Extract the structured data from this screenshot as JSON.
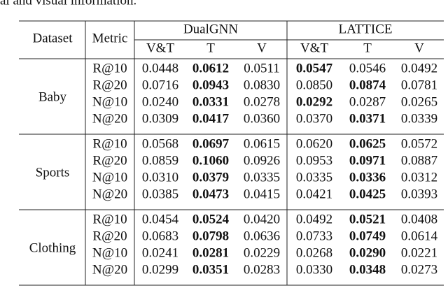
{
  "caption_fragment": "al and visual information.",
  "table": {
    "header": {
      "dataset": "Dataset",
      "metric": "Metric",
      "groups": [
        "DualGNN",
        "LATTICE"
      ],
      "subcolumns": [
        "V&T",
        "T",
        "V",
        "V&T",
        "T",
        "V"
      ]
    },
    "sections": [
      {
        "dataset": "Baby",
        "rows": [
          {
            "metric": "R@10",
            "values": [
              "0.0448",
              "0.0612",
              "0.0511",
              "0.0547",
              "0.0546",
              "0.0492"
            ],
            "bold": [
              false,
              true,
              false,
              true,
              false,
              false
            ]
          },
          {
            "metric": "R@20",
            "values": [
              "0.0716",
              "0.0943",
              "0.0830",
              "0.0850",
              "0.0874",
              "0.0781"
            ],
            "bold": [
              false,
              true,
              false,
              false,
              true,
              false
            ]
          },
          {
            "metric": "N@10",
            "values": [
              "0.0240",
              "0.0331",
              "0.0278",
              "0.0292",
              "0.0287",
              "0.0265"
            ],
            "bold": [
              false,
              true,
              false,
              true,
              false,
              false
            ]
          },
          {
            "metric": "N@20",
            "values": [
              "0.0309",
              "0.0417",
              "0.0360",
              "0.0370",
              "0.0371",
              "0.0339"
            ],
            "bold": [
              false,
              true,
              false,
              false,
              true,
              false
            ]
          }
        ]
      },
      {
        "dataset": "Sports",
        "rows": [
          {
            "metric": "R@10",
            "values": [
              "0.0568",
              "0.0697",
              "0.0615",
              "0.0620",
              "0.0625",
              "0.0572"
            ],
            "bold": [
              false,
              true,
              false,
              false,
              true,
              false
            ]
          },
          {
            "metric": "R@20",
            "values": [
              "0.0859",
              "0.1060",
              "0.0926",
              "0.0953",
              "0.0971",
              "0.0887"
            ],
            "bold": [
              false,
              true,
              false,
              false,
              true,
              false
            ]
          },
          {
            "metric": "N@10",
            "values": [
              "0.0310",
              "0.0379",
              "0.0335",
              "0.0335",
              "0.0336",
              "0.0312"
            ],
            "bold": [
              false,
              true,
              false,
              false,
              true,
              false
            ]
          },
          {
            "metric": "N@20",
            "values": [
              "0.0385",
              "0.0473",
              "0.0415",
              "0.0421",
              "0.0425",
              "0.0393"
            ],
            "bold": [
              false,
              true,
              false,
              false,
              true,
              false
            ]
          }
        ]
      },
      {
        "dataset": "Clothing",
        "rows": [
          {
            "metric": "R@10",
            "values": [
              "0.0454",
              "0.0524",
              "0.0420",
              "0.0492",
              "0.0521",
              "0.0408"
            ],
            "bold": [
              false,
              true,
              false,
              false,
              true,
              false
            ]
          },
          {
            "metric": "R@20",
            "values": [
              "0.0683",
              "0.0798",
              "0.0636",
              "0.0733",
              "0.0749",
              "0.0614"
            ],
            "bold": [
              false,
              true,
              false,
              false,
              true,
              false
            ]
          },
          {
            "metric": "N@10",
            "values": [
              "0.0241",
              "0.0281",
              "0.0229",
              "0.0268",
              "0.0290",
              "0.0221"
            ],
            "bold": [
              false,
              true,
              false,
              false,
              true,
              false
            ]
          },
          {
            "metric": "N@20",
            "values": [
              "0.0299",
              "0.0351",
              "0.0283",
              "0.0330",
              "0.0348",
              "0.0273"
            ],
            "bold": [
              false,
              true,
              false,
              false,
              true,
              false
            ]
          }
        ]
      }
    ]
  }
}
